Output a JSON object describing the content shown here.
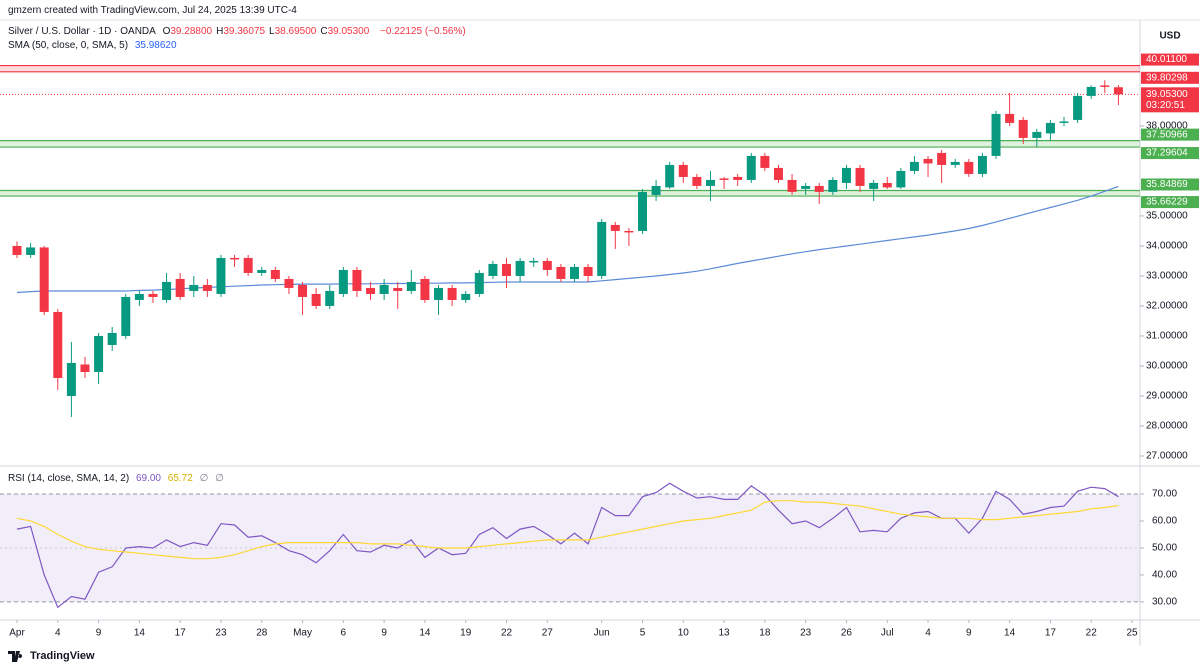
{
  "header": {
    "credit": "gmzern created with TradingView.com, Jul 24, 2025 13:39 UTC-4",
    "symbol": "Silver / U.S. Dollar · 1D · OANDA",
    "ohlc": [
      {
        "key": "O",
        "value": "39.28800"
      },
      {
        "key": "H",
        "value": "39.36075"
      },
      {
        "key": "L",
        "value": "38.69500"
      },
      {
        "key": "C",
        "value": "39.05300"
      }
    ],
    "change": "−0.22125 (−0.56%)",
    "brand": "TradingView"
  },
  "chart_data": [
    {
      "type": "candlestick",
      "currency": "USD",
      "up_color": "#089981",
      "down_color": "#f23645",
      "categories": [
        "Apr",
        null,
        null,
        "4",
        null,
        null,
        "9",
        null,
        null,
        "14",
        null,
        null,
        "17",
        null,
        null,
        "23",
        null,
        null,
        "28",
        null,
        null,
        "May",
        null,
        null,
        "6",
        null,
        null,
        "9",
        null,
        null,
        "14",
        null,
        null,
        "19",
        null,
        null,
        "22",
        null,
        null,
        "27",
        null,
        null,
        null,
        "Jun",
        null,
        null,
        "5",
        null,
        null,
        "10",
        null,
        null,
        "13",
        null,
        null,
        "18",
        null,
        null,
        "23",
        null,
        null,
        "26",
        null,
        null,
        "Jul",
        null,
        null,
        "4",
        null,
        null,
        "9",
        null,
        null,
        "14",
        null,
        null,
        "17",
        null,
        null,
        "22",
        null,
        null,
        "25"
      ],
      "open": [
        34.0,
        33.7,
        33.95,
        31.8,
        29.0,
        30.05,
        29.8,
        30.7,
        31.0,
        32.2,
        32.4,
        32.2,
        32.9,
        32.5,
        32.7,
        32.4,
        33.6,
        33.6,
        33.1,
        33.2,
        32.9,
        32.7,
        32.4,
        32.0,
        32.4,
        33.2,
        32.6,
        32.4,
        32.6,
        32.5,
        32.9,
        32.2,
        32.6,
        32.2,
        32.4,
        33.0,
        33.4,
        33.0,
        33.45,
        33.5,
        33.3,
        32.9,
        33.3,
        33.0,
        34.7,
        34.5,
        34.5,
        35.7,
        35.95,
        36.7,
        36.3,
        36.0,
        36.25,
        36.3,
        36.2,
        37.0,
        36.6,
        36.2,
        35.9,
        36.0,
        35.8,
        36.1,
        36.6,
        35.9,
        36.1,
        35.95,
        36.5,
        36.9,
        37.1,
        36.7,
        36.8,
        36.4,
        37.0,
        38.4,
        38.2,
        37.6,
        37.75,
        38.1,
        38.2,
        39.0,
        39.35,
        39.288,
        null
      ],
      "high": [
        34.15,
        34.1,
        34.0,
        31.9,
        30.8,
        30.3,
        31.1,
        31.3,
        32.4,
        32.5,
        32.5,
        33.1,
        33.1,
        33.0,
        32.9,
        33.7,
        33.7,
        33.7,
        33.3,
        33.3,
        33.0,
        32.8,
        32.6,
        32.7,
        33.3,
        33.3,
        32.8,
        32.9,
        32.8,
        33.2,
        33.0,
        32.7,
        32.7,
        32.5,
        33.2,
        33.5,
        33.6,
        33.6,
        33.6,
        33.6,
        33.4,
        33.4,
        33.4,
        34.9,
        34.8,
        34.6,
        35.9,
        36.2,
        36.8,
        36.8,
        36.4,
        36.5,
        36.3,
        36.4,
        37.1,
        37.1,
        36.7,
        36.4,
        36.1,
        36.1,
        36.3,
        36.7,
        36.7,
        36.2,
        36.3,
        36.6,
        37.0,
        37.0,
        37.2,
        36.9,
        36.9,
        37.1,
        38.5,
        39.1,
        38.3,
        37.9,
        38.2,
        38.3,
        39.1,
        39.35,
        39.52,
        39.36075,
        null
      ],
      "low": [
        33.6,
        33.6,
        31.7,
        29.2,
        28.3,
        29.6,
        29.4,
        30.5,
        30.9,
        32.0,
        32.1,
        32.1,
        32.2,
        32.3,
        32.3,
        32.3,
        33.3,
        33.0,
        33.0,
        32.8,
        32.4,
        31.7,
        31.9,
        31.9,
        32.3,
        32.3,
        32.2,
        32.2,
        31.9,
        32.4,
        32.1,
        31.7,
        32.0,
        32.1,
        32.3,
        32.9,
        32.6,
        32.8,
        33.3,
        33.0,
        32.8,
        32.8,
        32.8,
        32.9,
        33.9,
        34.0,
        34.4,
        35.5,
        35.9,
        36.1,
        35.9,
        35.5,
        35.9,
        36.0,
        36.1,
        36.5,
        36.1,
        35.7,
        35.7,
        35.4,
        35.7,
        35.9,
        35.8,
        35.5,
        35.9,
        35.9,
        36.4,
        36.3,
        36.1,
        36.6,
        36.3,
        36.3,
        36.9,
        38.0,
        37.4,
        37.3,
        37.5,
        38.0,
        38.1,
        38.9,
        39.1,
        38.695,
        null
      ],
      "close": [
        33.7,
        33.95,
        31.8,
        29.6,
        30.1,
        29.8,
        31.0,
        31.1,
        32.3,
        32.4,
        32.3,
        32.8,
        32.3,
        32.7,
        32.5,
        33.6,
        33.55,
        33.1,
        33.2,
        32.9,
        32.6,
        32.3,
        32.0,
        32.5,
        33.2,
        32.5,
        32.4,
        32.7,
        32.5,
        32.8,
        32.2,
        32.6,
        32.2,
        32.4,
        33.1,
        33.4,
        33.0,
        33.5,
        33.5,
        33.2,
        32.9,
        33.3,
        33.0,
        34.8,
        34.5,
        34.45,
        35.8,
        36.0,
        36.7,
        36.3,
        36.0,
        36.2,
        36.2,
        36.2,
        37.0,
        36.6,
        36.2,
        35.8,
        36.0,
        35.8,
        36.2,
        36.6,
        36.0,
        36.1,
        35.95,
        36.5,
        36.8,
        36.75,
        36.7,
        36.8,
        36.4,
        37.0,
        38.4,
        38.1,
        37.6,
        37.8,
        38.1,
        38.15,
        39.0,
        39.3,
        39.3,
        39.053,
        null
      ],
      "series": [
        {
          "name": "SMA (50, close, 0, SMA, 5)",
          "color": "#5b8bd6",
          "last_label": "35.98620",
          "values": [
            32.45,
            32.48,
            32.5,
            32.5,
            32.5,
            32.5,
            32.5,
            32.5,
            32.5,
            32.52,
            32.53,
            32.55,
            32.57,
            32.6,
            32.62,
            32.64,
            32.66,
            32.68,
            32.7,
            32.71,
            32.72,
            32.73,
            32.73,
            32.73,
            32.74,
            32.74,
            32.74,
            32.75,
            32.75,
            32.75,
            32.76,
            32.76,
            32.77,
            32.77,
            32.78,
            32.79,
            32.8,
            32.8,
            32.8,
            32.8,
            32.8,
            32.8,
            32.8,
            32.84,
            32.88,
            32.92,
            32.96,
            33.0,
            33.05,
            33.1,
            33.16,
            33.24,
            33.33,
            33.42,
            33.5,
            33.58,
            33.66,
            33.74,
            33.81,
            33.88,
            33.94,
            34.0,
            34.06,
            34.12,
            34.18,
            34.24,
            34.3,
            34.36,
            34.43,
            34.5,
            34.58,
            34.68,
            34.8,
            34.92,
            35.04,
            35.16,
            35.28,
            35.4,
            35.52,
            35.66,
            35.82,
            35.9862,
            null
          ]
        }
      ],
      "zones": [
        {
          "color": "#f23645",
          "high": {
            "value": 40.011,
            "label": "40.01100"
          },
          "low": {
            "value": 39.80298,
            "label": "39.80298"
          }
        },
        {
          "color": "#4caf50",
          "high": {
            "value": 37.50966,
            "label": "37.50966"
          },
          "low": {
            "value": 37.29604,
            "label": "37.29604"
          }
        },
        {
          "color": "#4caf50",
          "high": {
            "value": 35.84869,
            "label": "35.84869"
          },
          "low": {
            "value": 35.66229,
            "label": "35.66229"
          }
        }
      ],
      "last_price": {
        "value": 39.053,
        "label": "39.05300",
        "countdown": "03:20:51",
        "color": "#f23645"
      },
      "ylim": [
        26.7,
        41.53
      ],
      "yticks": [
        {
          "value": 38,
          "label": "38.00000"
        },
        {
          "value": 35,
          "label": "35.00000"
        },
        {
          "value": 34,
          "label": "34.00000"
        },
        {
          "value": 33,
          "label": "33.00000"
        },
        {
          "value": 32,
          "label": "32.00000"
        },
        {
          "value": 31,
          "label": "31.00000"
        },
        {
          "value": 30,
          "label": "30.00000"
        },
        {
          "value": 29,
          "label": "29.00000"
        },
        {
          "value": 28,
          "label": "28.00000"
        },
        {
          "value": 27,
          "label": "27.00000"
        }
      ],
      "grid": false
    },
    {
      "type": "line",
      "title": "RSI (14, close, SMA, 14, 2)",
      "extra_labels": [
        "∅",
        "∅"
      ],
      "band": [
        70,
        30
      ],
      "band_color": "#7e57c2",
      "midline": 50,
      "series": [
        {
          "name": "RSI (14, close, SMA, 14, 2)",
          "color": "#7e57c2",
          "last_label": "69.00",
          "values": [
            57,
            58,
            40,
            28,
            32,
            31,
            41,
            43,
            50,
            50.5,
            50,
            53,
            50.5,
            52,
            51,
            59,
            58.5,
            54,
            54.5,
            52,
            49,
            47.5,
            44.5,
            49,
            55,
            49,
            48.5,
            51,
            50,
            53,
            46.5,
            50,
            47.5,
            48,
            55,
            57.5,
            53.5,
            57,
            58,
            55,
            51.5,
            55.5,
            51.5,
            65,
            62,
            62,
            69,
            70.5,
            74,
            71,
            68.5,
            69,
            68,
            68,
            73,
            69.5,
            64,
            59,
            60,
            57.5,
            61,
            65,
            56,
            56.5,
            56,
            61,
            63,
            63.5,
            61,
            61,
            55.5,
            61,
            71,
            68,
            62.5,
            63.5,
            65,
            65.5,
            71,
            72.5,
            72,
            69,
            null
          ]
        },
        {
          "color": "#fdd835",
          "last_label": "65.72",
          "values": [
            61,
            60,
            58,
            55,
            52.5,
            50.5,
            49.5,
            49,
            48.5,
            48,
            47.5,
            47,
            46.5,
            46,
            46,
            46.5,
            47.5,
            49,
            50.5,
            51.5,
            52,
            52,
            52,
            52,
            52,
            52,
            51.5,
            51.5,
            51.5,
            51,
            50.5,
            50,
            50,
            50,
            50.5,
            51,
            51.5,
            52,
            52.5,
            53,
            53,
            53,
            53,
            54,
            55,
            56,
            57,
            58,
            59,
            60,
            60.5,
            61,
            62,
            63,
            64,
            67,
            67.5,
            67.5,
            67,
            67,
            66.5,
            66,
            65.5,
            64.5,
            63.5,
            62.5,
            62,
            61.5,
            61,
            61,
            61,
            60.5,
            60.5,
            61,
            61.5,
            62,
            62.5,
            63,
            63.5,
            64.5,
            65,
            65.72,
            null
          ]
        }
      ],
      "ylim": [
        23.3,
        80
      ],
      "yticks": [
        {
          "value": 70,
          "label": "70.00"
        },
        {
          "value": 60,
          "label": "60.00"
        },
        {
          "value": 50,
          "label": "50.00"
        },
        {
          "value": 40,
          "label": "40.00"
        },
        {
          "value": 30,
          "label": "30.00"
        }
      ]
    }
  ]
}
